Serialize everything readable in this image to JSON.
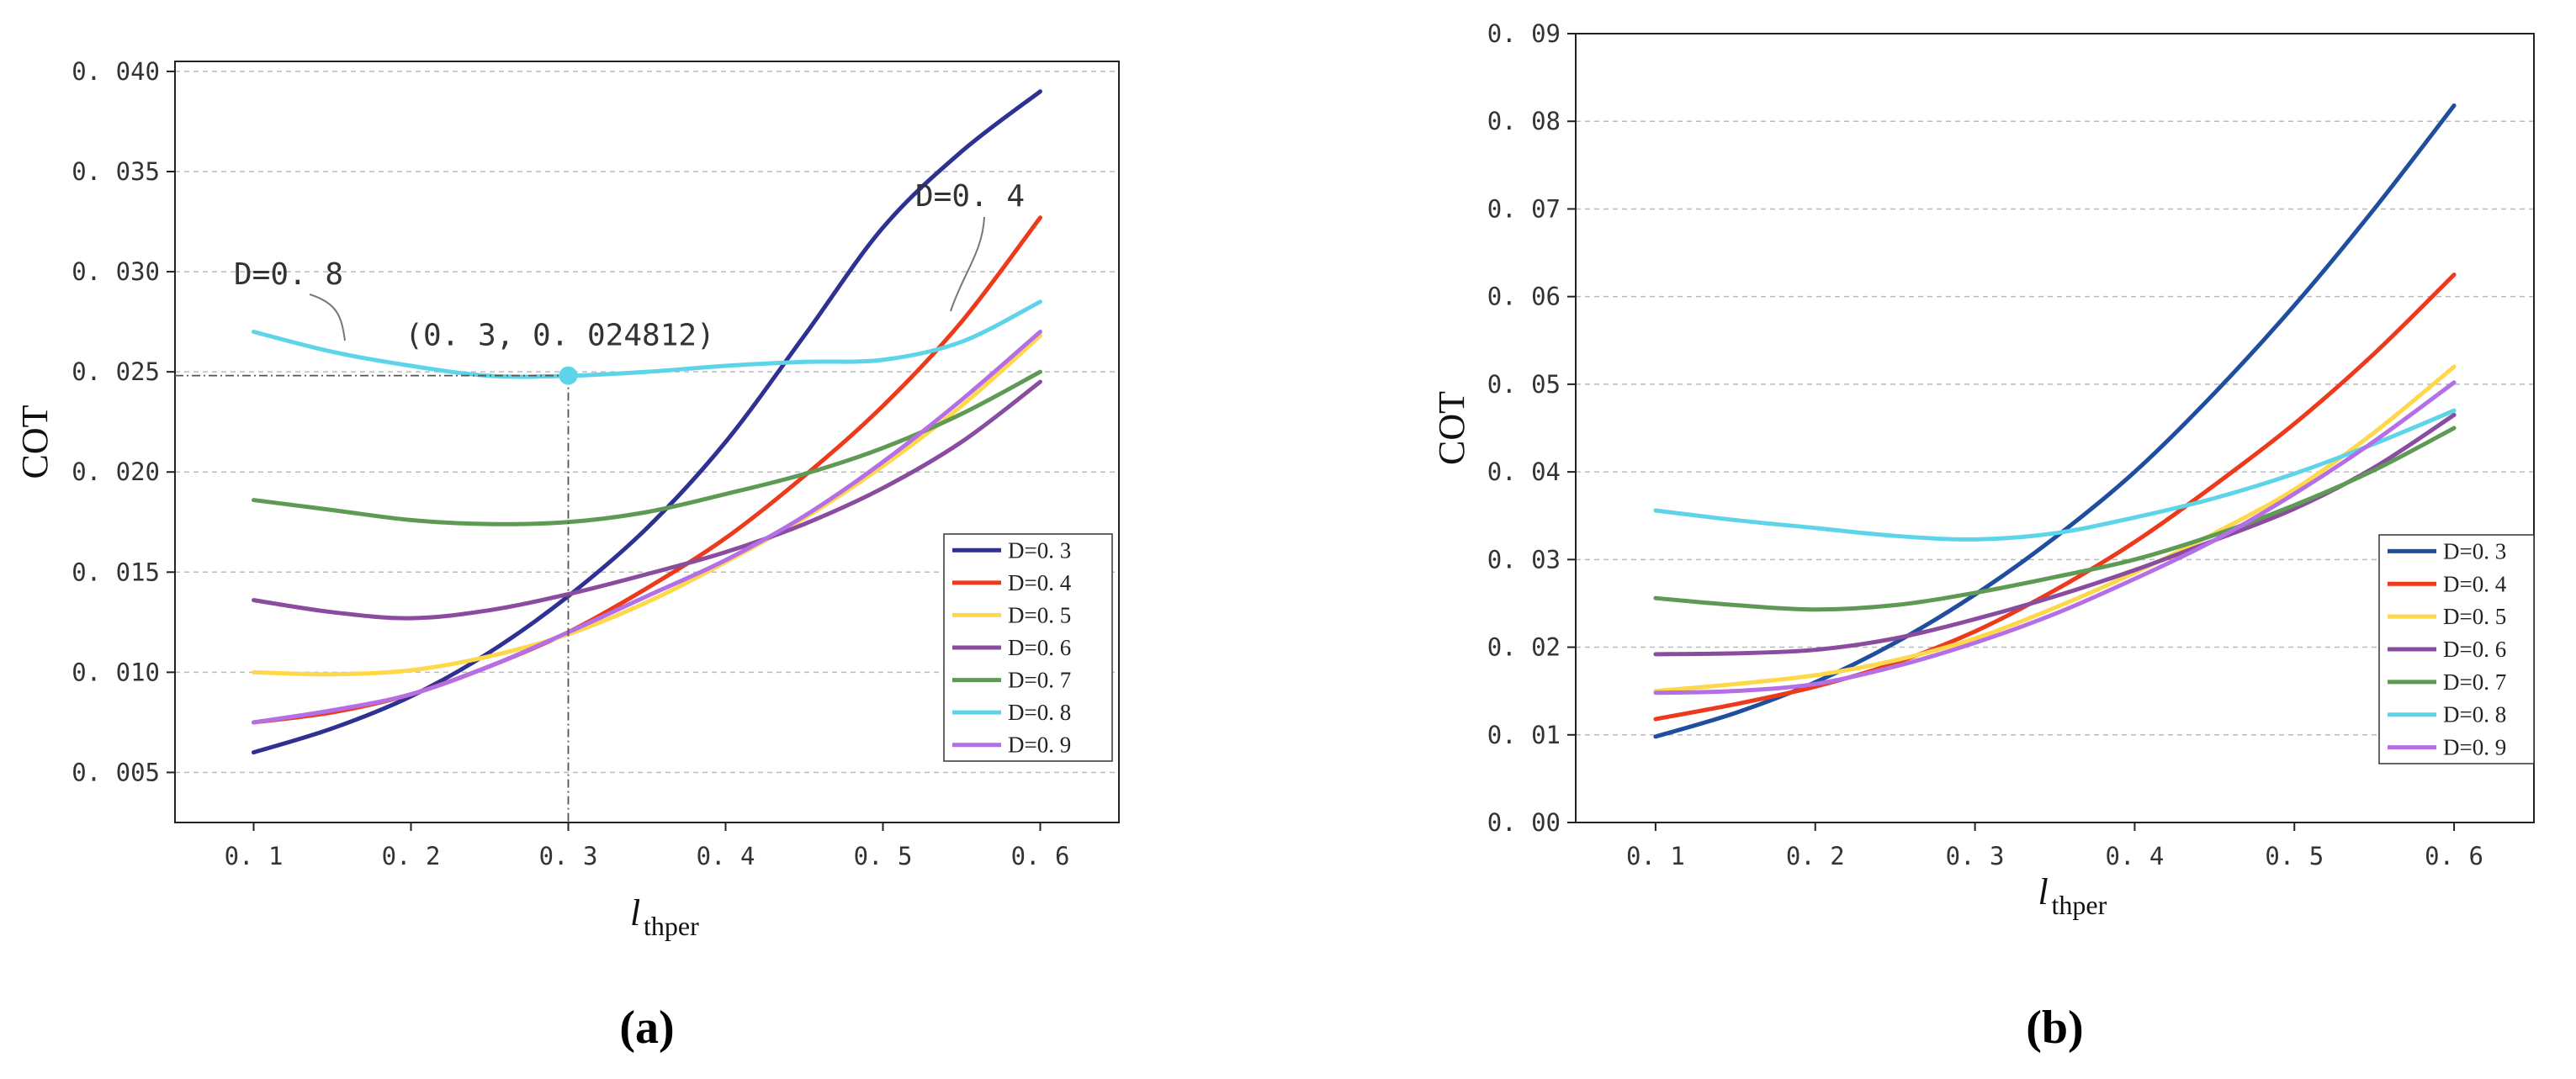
{
  "chart_data": [
    {
      "type": "line",
      "panel_label": "(a)",
      "ylabel": "COT",
      "xlabel_main": "l",
      "xlabel_sub": "thper",
      "xlim": [
        0.05,
        0.65
      ],
      "ylim": [
        0.0025,
        0.0405
      ],
      "xticks": [
        0.1,
        0.2,
        0.3,
        0.4,
        0.5,
        0.6
      ],
      "xtick_labels": [
        "0. 1",
        "0. 2",
        "0. 3",
        "0. 4",
        "0. 5",
        "0. 6"
      ],
      "yticks": [
        0.005,
        0.01,
        0.015,
        0.02,
        0.025,
        0.03,
        0.035,
        0.04
      ],
      "ytick_labels": [
        "0. 005",
        "0. 010",
        "0. 015",
        "0. 020",
        "0. 025",
        "0. 030",
        "0. 035",
        "0. 040"
      ],
      "grid": "horizontal dashed",
      "legend_position": "lower-right",
      "x": [
        0.1,
        0.15,
        0.2,
        0.25,
        0.3,
        0.35,
        0.4,
        0.45,
        0.5,
        0.55,
        0.6
      ],
      "series": [
        {
          "name": "D=0. 3",
          "color": "#2e3192",
          "values": [
            0.006,
            0.0072,
            0.0088,
            0.011,
            0.0138,
            0.0172,
            0.0215,
            0.0268,
            0.0322,
            0.036,
            0.039
          ]
        },
        {
          "name": "D=0. 4",
          "color": "#ee3a1c",
          "values": [
            0.0075,
            0.008,
            0.0089,
            0.0103,
            0.012,
            0.0142,
            0.0167,
            0.0198,
            0.0233,
            0.0275,
            0.0327
          ]
        },
        {
          "name": "D=0. 5",
          "color": "#ffd84a",
          "values": [
            0.01,
            0.0099,
            0.0101,
            0.0108,
            0.0119,
            0.0135,
            0.0155,
            0.0177,
            0.0203,
            0.0233,
            0.0268
          ]
        },
        {
          "name": "D=0. 6",
          "color": "#8a4c9e",
          "values": [
            0.0136,
            0.013,
            0.0127,
            0.0131,
            0.0139,
            0.0149,
            0.016,
            0.0174,
            0.0192,
            0.0215,
            0.0245
          ]
        },
        {
          "name": "D=0. 7",
          "color": "#5f9a55",
          "values": [
            0.0186,
            0.0181,
            0.0176,
            0.0174,
            0.0175,
            0.018,
            0.0189,
            0.0199,
            0.0212,
            0.0229,
            0.025
          ]
        },
        {
          "name": "D=0. 8",
          "color": "#5ed4e8",
          "values": [
            0.027,
            0.026,
            0.0253,
            0.0248,
            0.0248,
            0.025,
            0.0253,
            0.0255,
            0.0256,
            0.0265,
            0.0285
          ]
        },
        {
          "name": "D=0. 9",
          "color": "#b46ee6",
          "values": [
            0.0075,
            0.0081,
            0.0089,
            0.0103,
            0.012,
            0.0138,
            0.0156,
            0.0178,
            0.0205,
            0.0236,
            0.027
          ]
        }
      ],
      "annotations": {
        "point_label": "(0. 3, 0. 024812)",
        "point": [
          0.3,
          0.024812
        ],
        "d08_label": "D=0. 8",
        "d04_label": "D=0. 4"
      }
    },
    {
      "type": "line",
      "panel_label": "(b)",
      "ylabel": "COT",
      "xlabel_main": "l",
      "xlabel_sub": "thper",
      "xlim": [
        0.05,
        0.65
      ],
      "ylim": [
        0.0,
        0.09
      ],
      "xticks": [
        0.1,
        0.2,
        0.3,
        0.4,
        0.5,
        0.6
      ],
      "xtick_labels": [
        "0. 1",
        "0. 2",
        "0. 3",
        "0. 4",
        "0. 5",
        "0. 6"
      ],
      "yticks": [
        0.0,
        0.01,
        0.02,
        0.03,
        0.04,
        0.05,
        0.06,
        0.07,
        0.08,
        0.09
      ],
      "ytick_labels": [
        "0. 00",
        "0. 01",
        "0. 02",
        "0. 03",
        "0. 04",
        "0. 05",
        "0. 06",
        "0. 07",
        "0. 08",
        "0. 09"
      ],
      "grid": "horizontal dashed",
      "legend_position": "lower-right",
      "x": [
        0.1,
        0.15,
        0.2,
        0.25,
        0.3,
        0.35,
        0.4,
        0.45,
        0.5,
        0.55,
        0.6
      ],
      "series": [
        {
          "name": "D=0. 3",
          "color": "#1f4e9e",
          "values": [
            0.0098,
            0.0125,
            0.016,
            0.0205,
            0.026,
            0.0325,
            0.04,
            0.049,
            0.059,
            0.07,
            0.0818
          ]
        },
        {
          "name": "D=0. 4",
          "color": "#ee3a1c",
          "values": [
            0.0118,
            0.0135,
            0.0155,
            0.0182,
            0.0218,
            0.0265,
            0.032,
            0.0385,
            0.0455,
            0.0535,
            0.0625
          ]
        },
        {
          "name": "D=0. 5",
          "color": "#ffd84a",
          "values": [
            0.015,
            0.0158,
            0.0168,
            0.0185,
            0.021,
            0.0245,
            0.0285,
            0.033,
            0.038,
            0.0445,
            0.052
          ]
        },
        {
          "name": "D=0. 6",
          "color": "#8a4c9e",
          "values": [
            0.0192,
            0.0193,
            0.0197,
            0.021,
            0.0232,
            0.0258,
            0.0288,
            0.0322,
            0.0358,
            0.0405,
            0.0465
          ]
        },
        {
          "name": "D=0. 7",
          "color": "#5f9a55",
          "values": [
            0.0256,
            0.0248,
            0.0243,
            0.0248,
            0.0262,
            0.028,
            0.03,
            0.0328,
            0.0362,
            0.0402,
            0.045
          ]
        },
        {
          "name": "D=0. 8",
          "color": "#5ed4e8",
          "values": [
            0.0356,
            0.0345,
            0.0336,
            0.0327,
            0.0323,
            0.033,
            0.0348,
            0.037,
            0.0398,
            0.0432,
            0.047
          ]
        },
        {
          "name": "D=0. 9",
          "color": "#b46ee6",
          "values": [
            0.0148,
            0.015,
            0.0158,
            0.0178,
            0.0205,
            0.0238,
            0.0278,
            0.0322,
            0.0375,
            0.0435,
            0.0502
          ]
        }
      ]
    }
  ]
}
